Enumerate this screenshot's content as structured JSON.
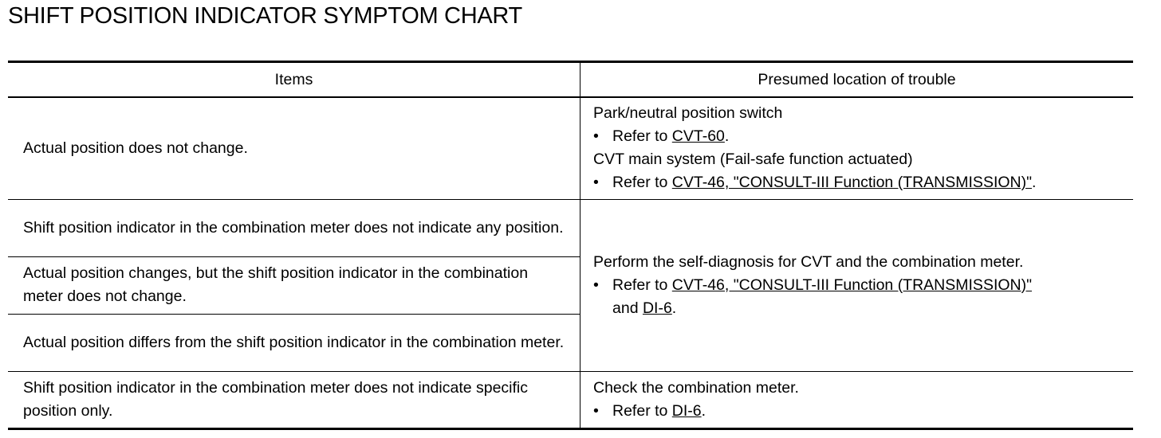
{
  "title": "SHIFT POSITION INDICATOR SYMPTOM CHART",
  "headers": {
    "items": "Items",
    "location": "Presumed location of trouble"
  },
  "rows": [
    {
      "item": "Actual position does not change."
    },
    {
      "item": "Shift position indicator in the combination meter does not indicate any position."
    },
    {
      "item": "Actual position changes, but the shift position indicator in the combination meter does not change."
    },
    {
      "item": "Actual position differs from the shift position indicator in the combination meter."
    },
    {
      "item": "Shift position indicator in the combination meter does not indicate specific position only."
    }
  ],
  "locations": {
    "a": {
      "line1": "Park/neutral position switch",
      "refer": "Refer to ",
      "link1": "CVT-60",
      "end1": ".",
      "line2": "CVT main system (Fail-safe function actuated)",
      "link2": "CVT-46, \"CONSULT-III Function (TRANSMISSION)\"",
      "end2": "."
    },
    "b": {
      "line1": "Perform the self-diagnosis for CVT and the combination meter.",
      "refer": "Refer to ",
      "link1": "CVT-46, \"CONSULT-III Function (TRANSMISSION)\"",
      "and": "and ",
      "link2": "DI-6",
      "end": "."
    },
    "c": {
      "line1": "Check the combination meter.",
      "refer": "Refer to ",
      "link1": "DI-6",
      "end": "."
    }
  },
  "bullet": "•"
}
